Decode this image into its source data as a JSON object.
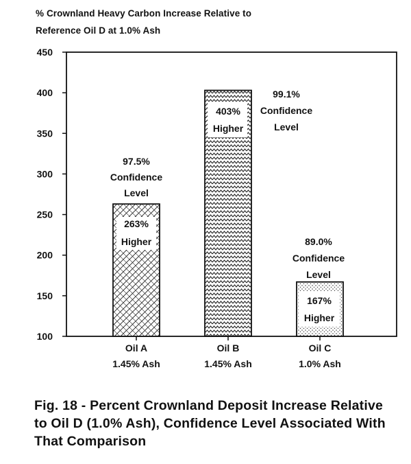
{
  "chart_data": {
    "type": "bar",
    "ylabel": [
      "% Crownland Heavy Carbon Increase Relative to",
      "Reference Oil D at 1.0% Ash"
    ],
    "ylim": [
      100,
      450
    ],
    "yticks": [
      100,
      150,
      200,
      250,
      300,
      350,
      400,
      450
    ],
    "grid": false,
    "categories": [
      {
        "name": "Oil A",
        "ash": "1.45% Ash"
      },
      {
        "name": "Oil B",
        "ash": "1.45% Ash"
      },
      {
        "name": "Oil C",
        "ash": "1.0% Ash"
      }
    ],
    "values": [
      263,
      403,
      167
    ],
    "bar_labels": [
      [
        "263%",
        "Higher"
      ],
      [
        "403%",
        "Higher"
      ],
      [
        "167%",
        "Higher"
      ]
    ],
    "confidence_labels": [
      [
        "97.5%",
        "Confidence",
        "Level"
      ],
      [
        "99.1%",
        "Confidence",
        "Level"
      ],
      [
        "89.0%",
        "Confidence",
        "Level"
      ]
    ],
    "patterns": [
      "diamond-hatch",
      "zigzag",
      "stipple"
    ]
  },
  "caption": "Fig. 18 - Percent Crownland Deposit Increase Relative to Oil D (1.0% Ash), Confidence Level Associated With That Comparison",
  "colors": {
    "ink": "#111111",
    "background": "#ffffff"
  }
}
